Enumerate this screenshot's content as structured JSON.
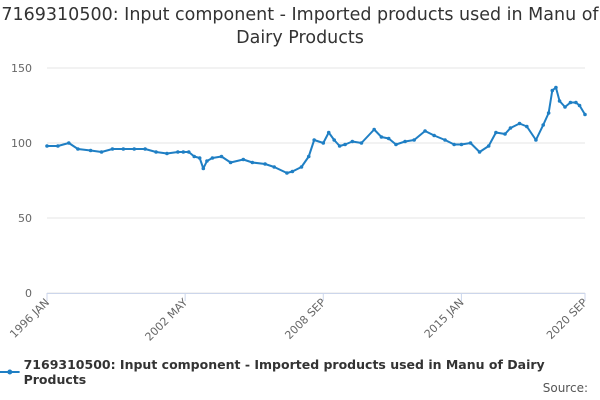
{
  "chart_data": {
    "type": "line",
    "title": "7169310500: Input component - Imported products used in Manu of Dairy Products",
    "xlabel": "",
    "ylabel": "",
    "x_ticks": [
      "1996 JAN",
      "2002 MAY",
      "2008 SEP",
      "2015 JAN",
      "2020 SEP"
    ],
    "y_ticks": [
      0,
      50,
      100,
      150
    ],
    "ylim": [
      0,
      150
    ],
    "xlim": [
      "1996-01",
      "2020-09"
    ],
    "grid": "horizontal",
    "legend_position": "bottom",
    "series": [
      {
        "name": "7169310500: Input component - Imported products used in Manu of Dairy Products",
        "color": "#1f7fc4",
        "x": [
          "1996-01",
          "1996-07",
          "1997-01",
          "1997-06",
          "1998-01",
          "1998-07",
          "1999-01",
          "1999-07",
          "2000-01",
          "2000-07",
          "2001-01",
          "2001-07",
          "2002-01",
          "2002-04",
          "2002-07",
          "2002-10",
          "2003-01",
          "2003-03",
          "2003-05",
          "2003-08",
          "2004-01",
          "2004-06",
          "2005-01",
          "2005-06",
          "2006-01",
          "2006-06",
          "2007-01",
          "2007-04",
          "2007-09",
          "2008-01",
          "2008-04",
          "2008-09",
          "2008-12",
          "2009-03",
          "2009-06",
          "2009-09",
          "2010-01",
          "2010-06",
          "2011-01",
          "2011-05",
          "2011-09",
          "2012-01",
          "2012-06",
          "2012-11",
          "2013-05",
          "2013-10",
          "2014-04",
          "2014-09",
          "2015-01",
          "2015-06",
          "2015-11",
          "2016-04",
          "2016-08",
          "2017-01",
          "2017-04",
          "2017-09",
          "2018-01",
          "2018-06",
          "2018-10",
          "2019-01",
          "2019-03",
          "2019-05",
          "2019-07",
          "2019-10",
          "2020-01",
          "2020-04",
          "2020-06",
          "2020-09"
        ],
        "values": [
          98,
          98,
          100,
          96,
          95,
          94,
          96,
          96,
          96,
          96,
          94,
          93,
          94,
          94,
          94,
          91,
          90,
          83,
          88,
          90,
          91,
          87,
          89,
          87,
          86,
          84,
          80,
          81,
          84,
          91,
          102,
          100,
          107,
          102,
          98,
          99,
          101,
          100,
          109,
          104,
          103,
          99,
          101,
          102,
          108,
          105,
          102,
          99,
          99,
          100,
          94,
          98,
          107,
          106,
          110,
          113,
          111,
          102,
          112,
          120,
          135,
          137,
          128,
          124,
          127,
          127,
          125,
          119
        ]
      }
    ]
  },
  "credits": "Source:"
}
